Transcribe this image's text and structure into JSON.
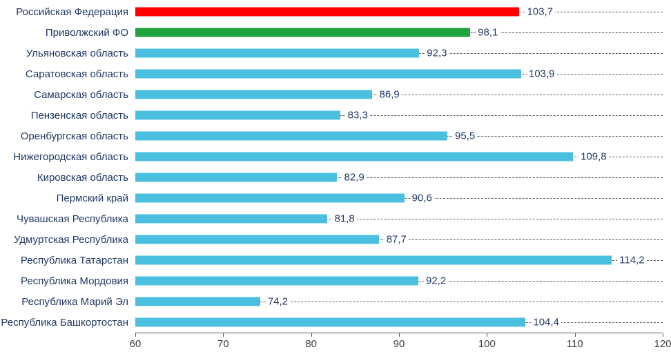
{
  "chart_data": {
    "type": "bar",
    "orientation": "horizontal",
    "title": "",
    "xlabel": "",
    "ylabel": "",
    "xlim": [
      60,
      120
    ],
    "xticks": [
      "60",
      "70",
      "80",
      "90",
      "100",
      "110",
      "120"
    ],
    "grid": "dashed horizontal row lines",
    "legend": "none",
    "colors": {
      "federation_bar": "#FF0000",
      "district_bar": "#1FA33C",
      "region_bar": "#4BBFE0",
      "label_text": "#1F3864",
      "axis_text": "#404040"
    },
    "items": [
      {
        "label": "Российская Федерация",
        "value": 103.7,
        "value_label": "103,7",
        "color": "#FF0000"
      },
      {
        "label": "Приволжский ФО",
        "value": 98.1,
        "value_label": "98,1",
        "color": "#1FA33C"
      },
      {
        "label": "Ульяновская область",
        "value": 92.3,
        "value_label": "92,3",
        "color": "#4BBFE0"
      },
      {
        "label": "Саратовская область",
        "value": 103.9,
        "value_label": "103,9",
        "color": "#4BBFE0"
      },
      {
        "label": "Самарская область",
        "value": 86.9,
        "value_label": "86,9",
        "color": "#4BBFE0"
      },
      {
        "label": "Пензенская область",
        "value": 83.3,
        "value_label": "83,3",
        "color": "#4BBFE0"
      },
      {
        "label": "Оренбургская область",
        "value": 95.5,
        "value_label": "95,5",
        "color": "#4BBFE0"
      },
      {
        "label": "Нижегородская область",
        "value": 109.8,
        "value_label": "109,8",
        "color": "#4BBFE0"
      },
      {
        "label": "Кировская область",
        "value": 82.9,
        "value_label": "82,9",
        "color": "#4BBFE0"
      },
      {
        "label": "Пермский край",
        "value": 90.6,
        "value_label": "90,6",
        "color": "#4BBFE0"
      },
      {
        "label": "Чувашская Республика",
        "value": 81.8,
        "value_label": "81,8",
        "color": "#4BBFE0"
      },
      {
        "label": "Удмуртская Республика",
        "value": 87.7,
        "value_label": "87,7",
        "color": "#4BBFE0"
      },
      {
        "label": "Республика Татарстан",
        "value": 114.2,
        "value_label": "114,2",
        "color": "#4BBFE0"
      },
      {
        "label": "Республика Мордовия",
        "value": 92.2,
        "value_label": "92,2",
        "color": "#4BBFE0"
      },
      {
        "label": "Республика Марий Эл",
        "value": 74.2,
        "value_label": "74,2",
        "color": "#4BBFE0"
      },
      {
        "label": "Республика Башкортостан",
        "value": 104.4,
        "value_label": "104,4",
        "color": "#4BBFE0"
      }
    ]
  }
}
